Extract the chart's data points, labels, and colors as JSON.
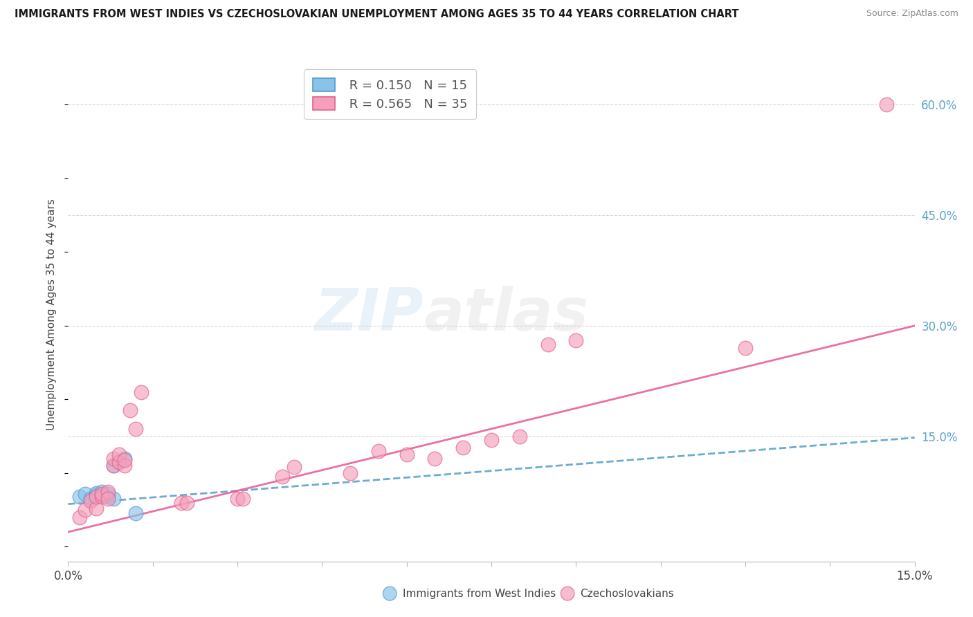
{
  "title": "IMMIGRANTS FROM WEST INDIES VS CZECHOSLOVAKIAN UNEMPLOYMENT AMONG AGES 35 TO 44 YEARS CORRELATION CHART",
  "source": "Source: ZipAtlas.com",
  "ylabel": "Unemployment Among Ages 35 to 44 years",
  "ytick_vals": [
    0.15,
    0.3,
    0.45,
    0.6
  ],
  "ytick_labels": [
    "15.0%",
    "30.0%",
    "45.0%",
    "60.0%"
  ],
  "xlim": [
    0.0,
    0.15
  ],
  "ylim": [
    -0.02,
    0.65
  ],
  "legend_r1": "R = 0.150",
  "legend_n1": "N = 15",
  "legend_r2": "R = 0.565",
  "legend_n2": "N = 35",
  "blue_color": "#89C4E8",
  "pink_color": "#F4A0BB",
  "blue_line_color": "#5BA3D0",
  "pink_line_color": "#E8609A",
  "blue_edge_color": "#5599CC",
  "pink_edge_color": "#E06090",
  "watermark_zip": "ZIP",
  "watermark_atlas": "atlas",
  "blue_scatter": [
    [
      0.002,
      0.068
    ],
    [
      0.003,
      0.072
    ],
    [
      0.004,
      0.065
    ],
    [
      0.005,
      0.071
    ],
    [
      0.005,
      0.073
    ],
    [
      0.005,
      0.068
    ],
    [
      0.006,
      0.075
    ],
    [
      0.006,
      0.07
    ],
    [
      0.007,
      0.068
    ],
    [
      0.007,
      0.072
    ],
    [
      0.008,
      0.065
    ],
    [
      0.008,
      0.11
    ],
    [
      0.009,
      0.115
    ],
    [
      0.01,
      0.12
    ],
    [
      0.012,
      0.045
    ]
  ],
  "pink_scatter": [
    [
      0.002,
      0.04
    ],
    [
      0.003,
      0.05
    ],
    [
      0.004,
      0.062
    ],
    [
      0.005,
      0.052
    ],
    [
      0.005,
      0.068
    ],
    [
      0.006,
      0.068
    ],
    [
      0.006,
      0.072
    ],
    [
      0.007,
      0.075
    ],
    [
      0.007,
      0.065
    ],
    [
      0.008,
      0.11
    ],
    [
      0.008,
      0.12
    ],
    [
      0.009,
      0.115
    ],
    [
      0.009,
      0.125
    ],
    [
      0.01,
      0.11
    ],
    [
      0.01,
      0.118
    ],
    [
      0.011,
      0.185
    ],
    [
      0.012,
      0.16
    ],
    [
      0.013,
      0.21
    ],
    [
      0.02,
      0.06
    ],
    [
      0.021,
      0.06
    ],
    [
      0.03,
      0.065
    ],
    [
      0.031,
      0.065
    ],
    [
      0.038,
      0.095
    ],
    [
      0.04,
      0.108
    ],
    [
      0.05,
      0.1
    ],
    [
      0.055,
      0.13
    ],
    [
      0.06,
      0.125
    ],
    [
      0.065,
      0.12
    ],
    [
      0.07,
      0.135
    ],
    [
      0.075,
      0.145
    ],
    [
      0.08,
      0.15
    ],
    [
      0.085,
      0.275
    ],
    [
      0.09,
      0.28
    ],
    [
      0.12,
      0.27
    ],
    [
      0.145,
      0.6
    ]
  ],
  "background_color": "#ffffff",
  "grid_color": "#d8d8d8",
  "pink_line_x": [
    0.0,
    0.15
  ],
  "pink_line_y": [
    0.02,
    0.3
  ],
  "blue_line_x": [
    0.0,
    0.15
  ],
  "blue_line_y": [
    0.058,
    0.148
  ]
}
